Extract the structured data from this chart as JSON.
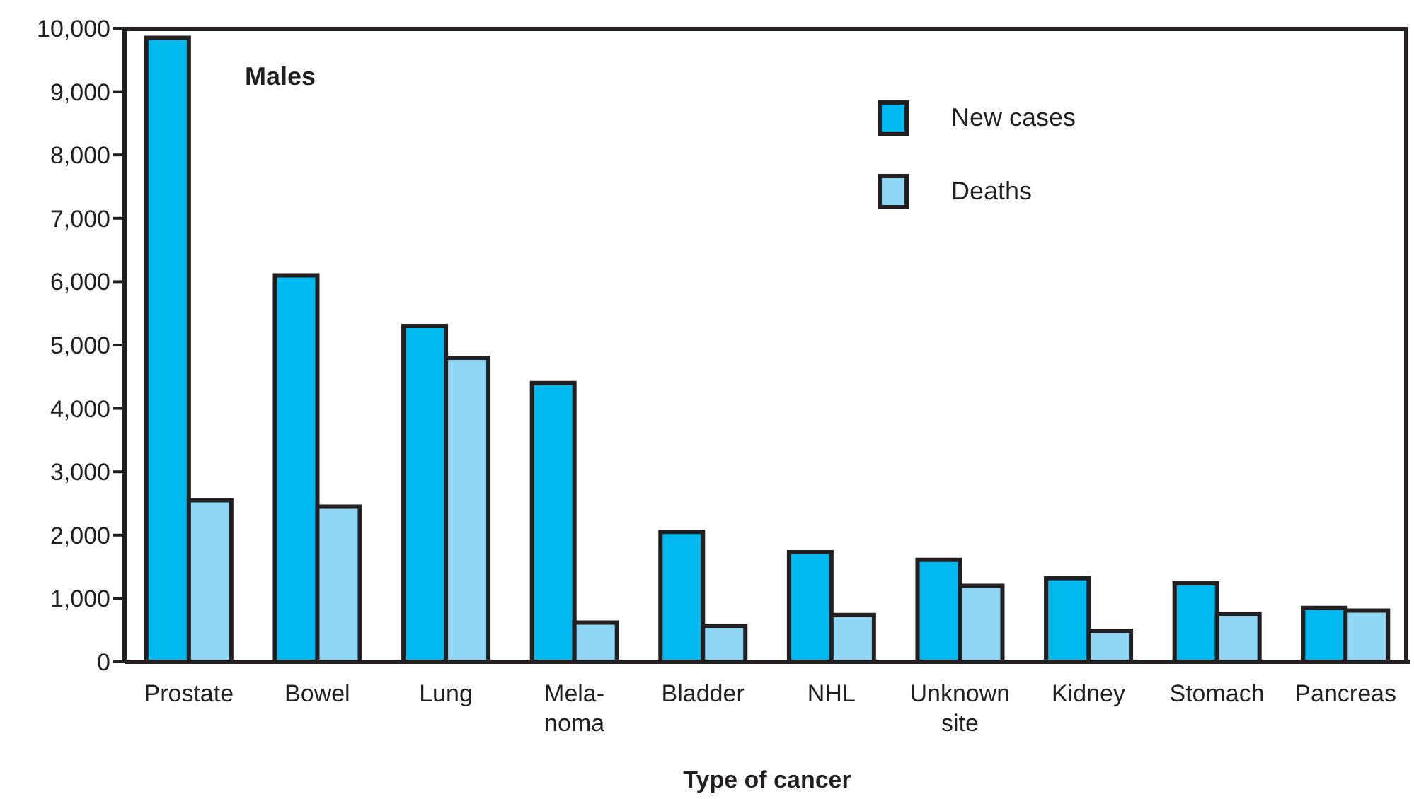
{
  "chart_data": {
    "type": "bar",
    "title": "Males",
    "xlabel": "Type of cancer",
    "categories": [
      "Prostate",
      "Bowel",
      "Lung",
      "Mela-\nnoma",
      "Bladder",
      "NHL",
      "Unknown\nsite",
      "Kidney",
      "Stomach",
      "Pancreas"
    ],
    "series": [
      {
        "name": "New cases",
        "color": "#00b9ef",
        "values": [
          9850,
          6100,
          5300,
          4400,
          2050,
          1730,
          1610,
          1320,
          1240,
          850
        ]
      },
      {
        "name": "Deaths",
        "color": "#8fd7f5",
        "values": [
          2550,
          2450,
          4800,
          620,
          570,
          740,
          1200,
          490,
          760,
          810
        ]
      }
    ],
    "ylim": [
      0,
      10000
    ],
    "yticks": [
      0,
      {
        "value": 1000,
        "label": "1,000"
      },
      {
        "value": 2000,
        "label": "2,000"
      },
      {
        "value": 3000,
        "label": "3,000"
      },
      {
        "value": 4000,
        "label": "4,000"
      },
      {
        "value": 5000,
        "label": "5,000"
      },
      {
        "value": 6000,
        "label": "6,000"
      },
      {
        "value": 7000,
        "label": "7,000"
      },
      {
        "value": 8000,
        "label": "8,000"
      },
      {
        "value": 9000,
        "label": "9,000"
      },
      {
        "value": 10000,
        "label": "10,000"
      }
    ],
    "grid": false,
    "legend": "top right"
  }
}
